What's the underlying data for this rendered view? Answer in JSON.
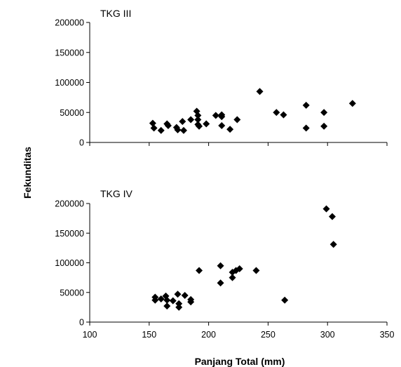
{
  "chart_data": [
    {
      "type": "scatter",
      "panel_label": "TKG III",
      "xlim": [
        100,
        350
      ],
      "ylim": [
        0,
        200000
      ],
      "y_ticks": [
        0,
        50000,
        100000,
        150000,
        200000
      ],
      "y_tick_labels": [
        "0",
        "50000",
        "100000",
        "150000",
        "200000"
      ],
      "marker_color": "#000000",
      "points": [
        {
          "x": 153,
          "y": 32000
        },
        {
          "x": 154,
          "y": 24000
        },
        {
          "x": 160,
          "y": 20000
        },
        {
          "x": 165,
          "y": 31000
        },
        {
          "x": 166,
          "y": 28000
        },
        {
          "x": 173,
          "y": 25000
        },
        {
          "x": 174,
          "y": 21000
        },
        {
          "x": 178,
          "y": 35000
        },
        {
          "x": 179,
          "y": 20000
        },
        {
          "x": 185,
          "y": 38000
        },
        {
          "x": 190,
          "y": 52000
        },
        {
          "x": 191,
          "y": 45000
        },
        {
          "x": 191,
          "y": 38000
        },
        {
          "x": 191,
          "y": 30000
        },
        {
          "x": 192,
          "y": 27000
        },
        {
          "x": 198,
          "y": 31000
        },
        {
          "x": 206,
          "y": 45000
        },
        {
          "x": 211,
          "y": 46000
        },
        {
          "x": 211,
          "y": 43000
        },
        {
          "x": 211,
          "y": 28000
        },
        {
          "x": 218,
          "y": 22000
        },
        {
          "x": 224,
          "y": 38000
        },
        {
          "x": 243,
          "y": 85000
        },
        {
          "x": 257,
          "y": 50000
        },
        {
          "x": 263,
          "y": 46000
        },
        {
          "x": 282,
          "y": 62000
        },
        {
          "x": 282,
          "y": 24000
        },
        {
          "x": 297,
          "y": 50000
        },
        {
          "x": 297,
          "y": 27000
        },
        {
          "x": 321,
          "y": 65000
        }
      ]
    },
    {
      "type": "scatter",
      "panel_label": "TKG IV",
      "xlim": [
        100,
        350
      ],
      "ylim": [
        0,
        200000
      ],
      "x_ticks": [
        100,
        150,
        200,
        250,
        300,
        350
      ],
      "x_tick_labels": [
        "100",
        "150",
        "200",
        "250",
        "300",
        "350"
      ],
      "y_ticks": [
        0,
        50000,
        100000,
        150000,
        200000
      ],
      "y_tick_labels": [
        "0",
        "50000",
        "100000",
        "150000",
        "200000"
      ],
      "marker_color": "#000000",
      "points": [
        {
          "x": 155,
          "y": 42000
        },
        {
          "x": 155,
          "y": 37000
        },
        {
          "x": 160,
          "y": 39000
        },
        {
          "x": 164,
          "y": 44000
        },
        {
          "x": 165,
          "y": 37000
        },
        {
          "x": 165,
          "y": 27000
        },
        {
          "x": 170,
          "y": 36000
        },
        {
          "x": 174,
          "y": 47000
        },
        {
          "x": 175,
          "y": 31000
        },
        {
          "x": 175,
          "y": 25000
        },
        {
          "x": 180,
          "y": 45000
        },
        {
          "x": 185,
          "y": 38000
        },
        {
          "x": 185,
          "y": 34000
        },
        {
          "x": 192,
          "y": 87000
        },
        {
          "x": 210,
          "y": 95000
        },
        {
          "x": 210,
          "y": 66000
        },
        {
          "x": 220,
          "y": 84000
        },
        {
          "x": 220,
          "y": 75000
        },
        {
          "x": 223,
          "y": 87000
        },
        {
          "x": 226,
          "y": 90000
        },
        {
          "x": 240,
          "y": 87000
        },
        {
          "x": 264,
          "y": 37000
        },
        {
          "x": 299,
          "y": 191000
        },
        {
          "x": 304,
          "y": 178000
        },
        {
          "x": 305,
          "y": 131000
        }
      ]
    }
  ],
  "shared_axes": {
    "ylabel": "Fekunditas",
    "xlabel": "Panjang Total (mm)"
  }
}
